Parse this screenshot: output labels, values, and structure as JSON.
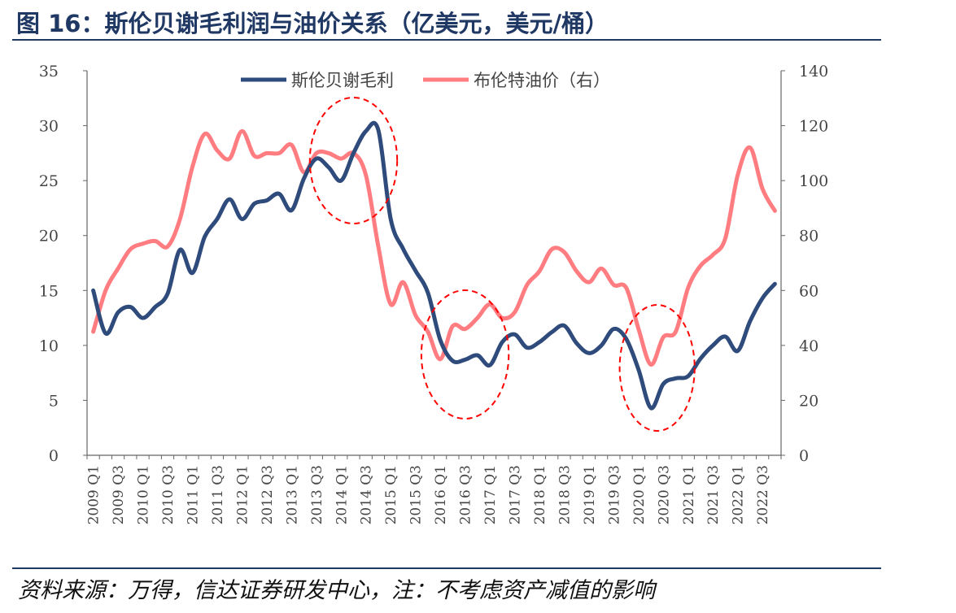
{
  "figure": {
    "title": "图 16：斯伦贝谢毛利润与油价关系（亿美元，美元/桶）",
    "source": "资料来源：万得，信达证券研发中心，注：不考虑资产减值的影响"
  },
  "chart_data": {
    "type": "line",
    "title": "",
    "x": [
      "2009Q1",
      "2009Q2",
      "2009Q3",
      "2009Q4",
      "2010Q1",
      "2010Q2",
      "2010Q3",
      "2010Q4",
      "2011Q1",
      "2011Q2",
      "2011Q3",
      "2011Q4",
      "2012Q1",
      "2012Q2",
      "2012Q3",
      "2012Q4",
      "2013Q1",
      "2013Q2",
      "2013Q3",
      "2013Q4",
      "2014Q1",
      "2014Q2",
      "2014Q3",
      "2014Q4",
      "2015Q1",
      "2015Q2",
      "2015Q3",
      "2015Q4",
      "2016Q1",
      "2016Q2",
      "2016Q3",
      "2016Q4",
      "2017Q1",
      "2017Q2",
      "2017Q3",
      "2017Q4",
      "2018Q1",
      "2018Q2",
      "2018Q3",
      "2018Q4",
      "2019Q1",
      "2019Q2",
      "2019Q3",
      "2019Q4",
      "2020Q1",
      "2020Q2",
      "2020Q3",
      "2020Q4",
      "2021Q1",
      "2021Q2",
      "2021Q3",
      "2021Q4",
      "2022Q1",
      "2022Q2",
      "2022Q3",
      "2022Q4"
    ],
    "x_tick_labels": [
      "2009 Q1",
      "2009 Q3",
      "2010 Q1",
      "2010 Q3",
      "2011 Q1",
      "2011 Q3",
      "2012 Q1",
      "2012 Q3",
      "2013 Q1",
      "2013 Q3",
      "2014 Q1",
      "2014 Q3",
      "2015 Q1",
      "2015 Q3",
      "2016 Q1",
      "2016 Q3",
      "2017 Q1",
      "2017 Q3",
      "2018 Q1",
      "2018 Q3",
      "2019 Q1",
      "2019 Q3",
      "2020 Q1",
      "2020 Q3",
      "2021 Q1",
      "2021 Q3",
      "2022 Q1",
      "2022 Q3"
    ],
    "y_left": {
      "ticks": [
        "0",
        "5",
        "10",
        "15",
        "20",
        "25",
        "30",
        "35"
      ],
      "ylim": [
        0,
        35
      ]
    },
    "y_right": {
      "ticks": [
        "0",
        "20",
        "40",
        "60",
        "80",
        "100",
        "120",
        "140"
      ],
      "ylim": [
        0,
        140
      ]
    },
    "legend_position": "top-center",
    "series": [
      {
        "name": "斯伦贝谢毛利",
        "axis": "left",
        "color": "#2f4b7c",
        "values": [
          15.0,
          11.1,
          13.0,
          13.5,
          12.5,
          13.5,
          14.7,
          18.7,
          16.6,
          19.9,
          21.5,
          23.3,
          21.5,
          22.9,
          23.2,
          23.8,
          22.3,
          25.2,
          27.0,
          26.2,
          25.0,
          27.5,
          29.5,
          29.6,
          21.5,
          18.8,
          16.8,
          14.8,
          10.5,
          8.6,
          8.7,
          9.1,
          8.2,
          10.3,
          11.0,
          9.8,
          10.3,
          11.2,
          11.8,
          10.2,
          9.3,
          10.0,
          11.5,
          10.6,
          7.8,
          4.3,
          6.5,
          7.0,
          7.2,
          8.8,
          10.0,
          10.8,
          9.5,
          12.2,
          14.3,
          15.6
        ]
      },
      {
        "name": "布伦特油价（右）",
        "axis": "right",
        "color": "#ff7c80",
        "values": [
          45,
          60,
          68,
          75,
          77,
          78,
          76,
          86,
          105,
          117,
          111,
          108,
          118,
          109,
          110,
          110,
          113,
          103,
          110,
          110,
          108,
          110,
          102,
          76,
          55,
          63,
          51,
          45,
          35,
          47,
          46,
          50,
          55,
          50,
          52,
          62,
          67,
          75,
          74,
          67,
          63,
          68,
          62,
          61,
          46,
          33,
          43,
          45,
          61,
          69,
          73,
          79,
          102,
          112,
          97,
          89
        ]
      }
    ],
    "annotations": [
      {
        "shape": "dashed-ellipse",
        "color": "#ff0000",
        "x_range": [
          "2013Q3",
          "2015Q1"
        ]
      },
      {
        "shape": "dashed-ellipse",
        "color": "#ff0000",
        "x_range": [
          "2015Q4",
          "2017Q2"
        ]
      },
      {
        "shape": "dashed-ellipse",
        "color": "#ff0000",
        "x_range": [
          "2019Q4",
          "2021Q1"
        ]
      }
    ]
  }
}
